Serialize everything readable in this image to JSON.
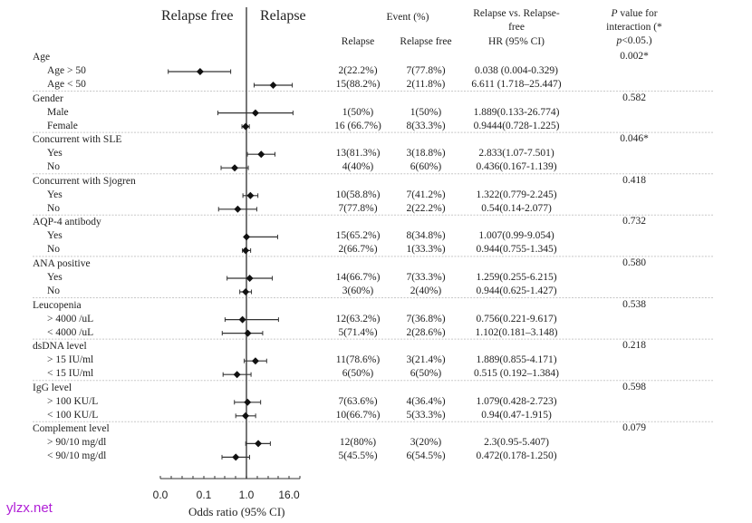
{
  "chart_data": {
    "type": "forest",
    "title": "",
    "left_label": "Relapse free",
    "right_label": "Relapse",
    "xlabel": "Odds ratio (95% CI)",
    "xscale": "log",
    "x_ticks": [
      "0.0",
      "0.1",
      "1.0",
      "16.0"
    ],
    "reference_value": 1.0,
    "columns": {
      "event_group": "Event (%)",
      "relapse": "Relapse",
      "relapse_free": "Relapse free",
      "hr_top": "Relapse vs. Relapse-",
      "hr_mid": "free",
      "hr_bottom": "HR (95% CI)",
      "p_line1_italic": "P",
      "p_line1_rest": " value for",
      "p_line2": "interaction (*",
      "p_line3_italic": "p",
      "p_line3_rest": "<0.05.)"
    },
    "groups": [
      {
        "name": "Age",
        "p": "0.002*",
        "rows": [
          {
            "label": "Age > 50",
            "relapse": "2(22.2%)",
            "free": "7(77.8%)",
            "hr_text": "0.038 (0.004-0.329)",
            "hr": 0.038,
            "lo": 0.004,
            "hi": 0.329
          },
          {
            "label": "Age < 50",
            "relapse": "15(88.2%)",
            "free": "2(11.8%)",
            "hr_text": "6.611 (1.718–25.447)",
            "hr": 6.611,
            "lo": 1.718,
            "hi": 25.447
          }
        ]
      },
      {
        "name": "Gender",
        "p": "0.582",
        "rows": [
          {
            "label": "Male",
            "relapse": "1(50%)",
            "free": "1(50%)",
            "hr_text": "1.889(0.133-26.774)",
            "hr": 1.889,
            "lo": 0.133,
            "hi": 26.774
          },
          {
            "label": "Female",
            "relapse": "16 (66.7%)",
            "free": "8(33.3%)",
            "hr_text": "0.9444(0.728-1.225)",
            "hr": 0.9444,
            "lo": 0.728,
            "hi": 1.225
          }
        ]
      },
      {
        "name": "Concurrent with SLE",
        "p": "0.046*",
        "rows": [
          {
            "label": "Yes",
            "relapse": "13(81.3%)",
            "free": "3(18.8%)",
            "hr_text": "2.833(1.07-7.501)",
            "hr": 2.833,
            "lo": 1.07,
            "hi": 7.501
          },
          {
            "label": "No",
            "relapse": "4(40%)",
            "free": "6(60%)",
            "hr_text": "0.436(0.167-1.139)",
            "hr": 0.436,
            "lo": 0.167,
            "hi": 1.139
          }
        ]
      },
      {
        "name": "Concurrent with Sjogren",
        "p": "0.418",
        "rows": [
          {
            "label": "Yes",
            "relapse": "10(58.8%)",
            "free": "7(41.2%)",
            "hr_text": "1.322(0.779-2.245)",
            "hr": 1.322,
            "lo": 0.779,
            "hi": 2.245
          },
          {
            "label": "No",
            "relapse": "7(77.8%)",
            "free": "2(22.2%)",
            "hr_text": "0.54(0.14-2.077)",
            "hr": 0.54,
            "lo": 0.14,
            "hi": 2.077
          }
        ]
      },
      {
        "name": "AQP-4 antibody",
        "p": "0.732",
        "rows": [
          {
            "label": "Yes",
            "relapse": "15(65.2%)",
            "free": "8(34.8%)",
            "hr_text": "1.007(0.99-9.054)",
            "hr": 1.007,
            "lo": 0.99,
            "hi": 9.054
          },
          {
            "label": "No",
            "relapse": "2(66.7%)",
            "free": "1(33.3%)",
            "hr_text": "0.944(0.755-1.345)",
            "hr": 0.944,
            "lo": 0.755,
            "hi": 1.345
          }
        ]
      },
      {
        "name": "ANA positive",
        "p": "0.580",
        "rows": [
          {
            "label": "Yes",
            "relapse": "14(66.7%)",
            "free": "7(33.3%)",
            "hr_text": "1.259(0.255-6.215)",
            "hr": 1.259,
            "lo": 0.255,
            "hi": 6.215
          },
          {
            "label": "No",
            "relapse": "3(60%)",
            "free": "2(40%)",
            "hr_text": "0.944(0.625-1.427)",
            "hr": 0.944,
            "lo": 0.625,
            "hi": 1.427
          }
        ]
      },
      {
        "name": "Leucopenia",
        "p": "0.538",
        "rows": [
          {
            "label": "> 4000 /uL",
            "relapse": "12(63.2%)",
            "free": "7(36.8%)",
            "hr_text": "0.756(0.221-9.617)",
            "hr": 0.756,
            "lo": 0.221,
            "hi": 9.617
          },
          {
            "label": "< 4000 /uL",
            "relapse": "5(71.4%)",
            "free": "2(28.6%)",
            "hr_text": "1.102(0.181–3.148)",
            "hr": 1.102,
            "lo": 0.181,
            "hi": 3.148
          }
        ]
      },
      {
        "name": "dsDNA level",
        "p": "0.218",
        "rows": [
          {
            "label": "> 15 IU/ml",
            "relapse": "11(78.6%)",
            "free": "3(21.4%)",
            "hr_text": "1.889(0.855-4.171)",
            "hr": 1.889,
            "lo": 0.855,
            "hi": 4.171
          },
          {
            "label": "< 15 IU/ml",
            "relapse": "6(50%)",
            "free": "6(50%)",
            "hr_text": "0.515 (0.192–1.384)",
            "hr": 0.515,
            "lo": 0.192,
            "hi": 1.384
          }
        ]
      },
      {
        "name": "IgG level",
        "p": "0.598",
        "rows": [
          {
            "label": "> 100 KU/L",
            "relapse": "7(63.6%)",
            "free": "4(36.4%)",
            "hr_text": "1.079(0.428-2.723)",
            "hr": 1.079,
            "lo": 0.428,
            "hi": 2.723
          },
          {
            "label": "< 100 KU/L",
            "relapse": "10(66.7%)",
            "free": "5(33.3%)",
            "hr_text": "0.94(0.47-1.915)",
            "hr": 0.94,
            "lo": 0.47,
            "hi": 1.915
          }
        ]
      },
      {
        "name": "Complement level",
        "p": "0.079",
        "rows": [
          {
            "label": "> 90/10 mg/dl",
            "relapse": "12(80%)",
            "free": "3(20%)",
            "hr_text": "2.3(0.95-5.407)",
            "hr": 2.3,
            "lo": 0.95,
            "hi": 5.407
          },
          {
            "label": "< 90/10 mg/dl",
            "relapse": "5(45.5%)",
            "free": "6(54.5%)",
            "hr_text": "0.472(0.178-1.250)",
            "hr": 0.472,
            "lo": 0.178,
            "hi": 1.25
          }
        ]
      }
    ]
  },
  "watermark": "ylzx.net"
}
